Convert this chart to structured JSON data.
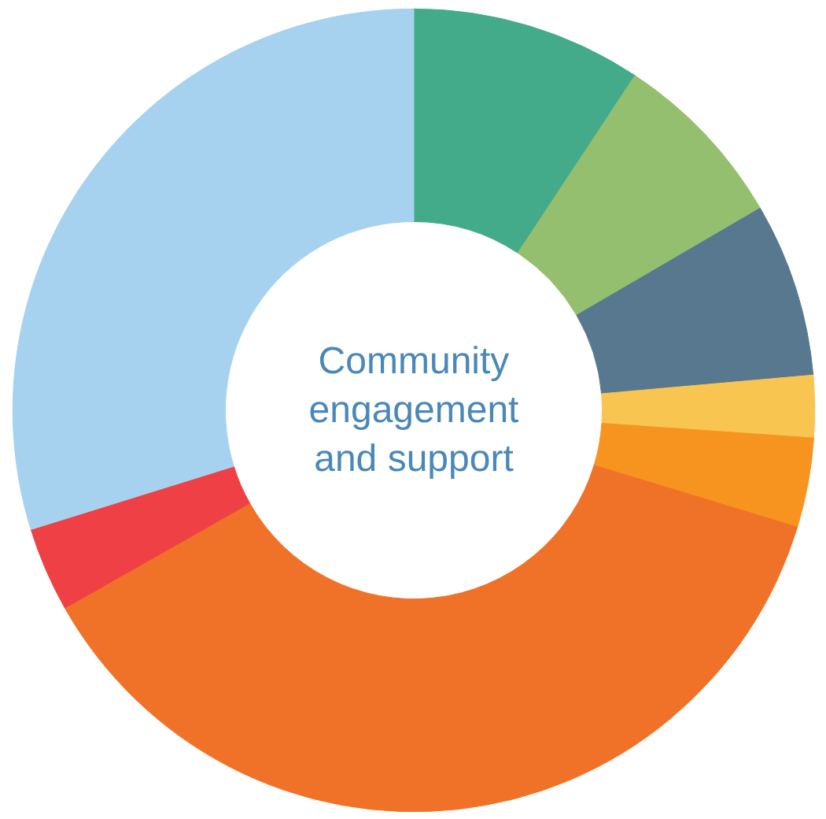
{
  "chart_data": {
    "type": "donut",
    "title": "Community\nengagement\nand support",
    "categories": [
      null,
      null,
      null,
      null,
      null,
      null,
      null,
      null
    ],
    "values": [
      9.3,
      7.3,
      7.0,
      2.5,
      3.6,
      37.1,
      3.4,
      29.8
    ],
    "colors": [
      "#44ab8a",
      "#93bf6e",
      "#57788f",
      "#f8c550",
      "#f7941f",
      "#f07229",
      "#ef4145",
      "#a6d2f0"
    ]
  }
}
